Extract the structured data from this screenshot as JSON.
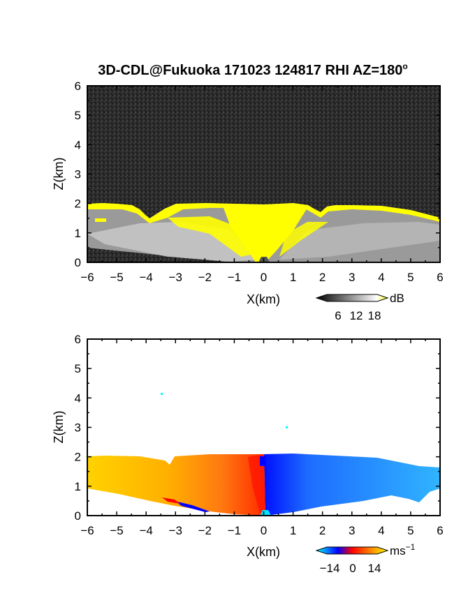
{
  "title": "3D-CDL@Fukuoka 171023 124817 RHI AZ=180",
  "title_superscript": "o",
  "panels": [
    {
      "id": "intensity",
      "xlabel": "X(km)",
      "ylabel": "Z(km)",
      "colorbar": {
        "unit": "dB",
        "tick_labels": [
          "6",
          "12",
          "18"
        ],
        "colors": [
          "#000000",
          "#ffffff",
          "#ffff00"
        ]
      }
    },
    {
      "id": "velocity",
      "xlabel": "X(km)",
      "ylabel": "Z(km)",
      "colorbar": {
        "unit": "ms",
        "unit_sup": "−1",
        "tick_labels": [
          "−14",
          "0",
          "14"
        ],
        "colors": [
          "#00ffff",
          "#0000ff",
          "#ff0000",
          "#ffff00"
        ]
      }
    }
  ],
  "chart_data": [
    {
      "type": "heatmap",
      "title": "3D-CDL@Fukuoka 171023 124817 RHI AZ=180°",
      "xlabel": "X(km)",
      "ylabel": "Z(km)",
      "xlim": [
        -6,
        6
      ],
      "ylim": [
        0,
        6
      ],
      "xticks": [
        "−6",
        "−5",
        "−4",
        "−3",
        "−2",
        "−1",
        "0",
        "1",
        "2",
        "3",
        "4",
        "5",
        "6"
      ],
      "yticks": [
        "0",
        "1",
        "2",
        "3",
        "4",
        "5",
        "6"
      ],
      "colorbar_unit": "dB",
      "colorbar_ticks": [
        6,
        12,
        18
      ],
      "colormap": "gray-to-yellow",
      "echo_top_km": [
        [
          -6,
          2.0
        ],
        [
          -5,
          1.95
        ],
        [
          -4,
          1.8
        ],
        [
          -3.6,
          1.55
        ],
        [
          -3,
          2.0
        ],
        [
          -2,
          2.0
        ],
        [
          -1,
          1.95
        ],
        [
          0,
          1.95
        ],
        [
          0.5,
          2.0
        ],
        [
          1,
          2.0
        ],
        [
          1.5,
          1.85
        ],
        [
          1.9,
          1.75
        ],
        [
          2.2,
          1.95
        ],
        [
          3,
          1.95
        ],
        [
          4,
          1.9
        ],
        [
          5,
          1.75
        ],
        [
          6,
          1.45
        ]
      ],
      "background_level_dB": 3,
      "saturated_region": "yellow (>=18 dB) along cloud top near Z=1.7-2.0 km and in cone above radar (X=-1 to 1 km)"
    },
    {
      "type": "heatmap",
      "xlabel": "X(km)",
      "ylabel": "Z(km)",
      "xlim": [
        -6,
        6
      ],
      "ylim": [
        0,
        6
      ],
      "xticks": [
        "−6",
        "−5",
        "−4",
        "−3",
        "−2",
        "−1",
        "0",
        "1",
        "2",
        "3",
        "4",
        "5",
        "6"
      ],
      "yticks": [
        "0",
        "1",
        "2",
        "3",
        "4",
        "5",
        "6"
      ],
      "colorbar_unit": "ms−1",
      "colorbar_ticks": [
        -14,
        0,
        14
      ],
      "colormap": "cyan-blue-red-yellow",
      "echo_top_km": [
        [
          -6,
          2.0
        ],
        [
          -3.5,
          1.9
        ],
        [
          -3.0,
          2.0
        ],
        [
          0,
          2.0
        ],
        [
          3,
          2.0
        ],
        [
          5,
          1.7
        ],
        [
          6,
          1.7
        ]
      ],
      "velocity_ms": [
        [
          -6,
          14
        ],
        [
          -4,
          13
        ],
        [
          -2,
          10
        ],
        [
          -1,
          7
        ],
        [
          -0.1,
          1
        ],
        [
          0.1,
          -1
        ],
        [
          1,
          -8
        ],
        [
          2,
          -10
        ],
        [
          4,
          -11
        ],
        [
          6,
          -12
        ]
      ],
      "isolated_points": [
        {
          "x": -3.5,
          "z": 4.1
        },
        {
          "x": 0.8,
          "z": 2.95
        }
      ]
    }
  ]
}
